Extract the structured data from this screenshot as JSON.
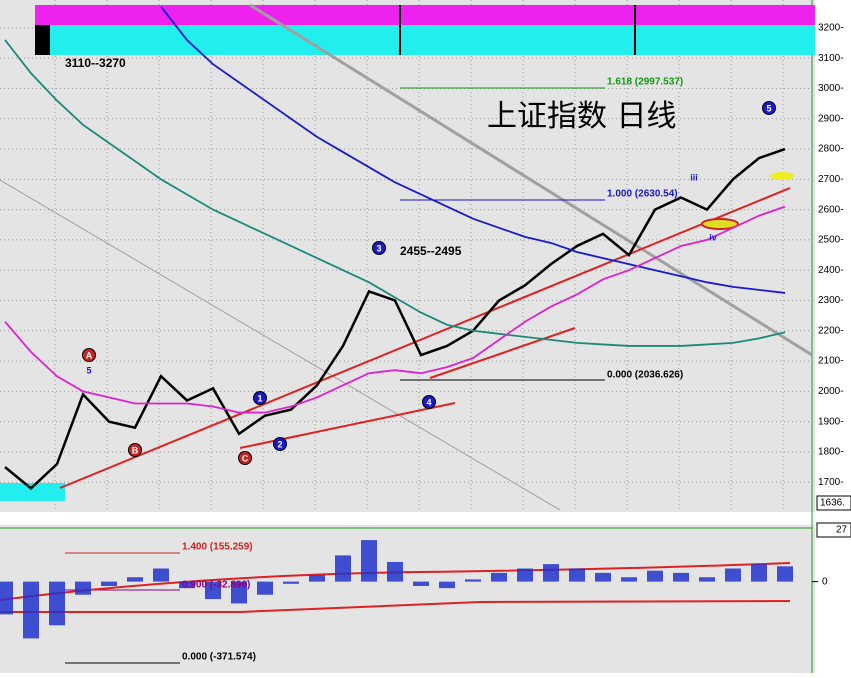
{
  "chart_data": {
    "type": "line",
    "title": "上证指数  日线",
    "ylim": [
      1615,
      3292
    ],
    "yticks": [
      {
        "value": 1700,
        "label": "1700-"
      },
      {
        "value": 1800,
        "label": "1800-"
      },
      {
        "value": 1900,
        "label": "1900-"
      },
      {
        "value": 2000,
        "label": "2000-"
      },
      {
        "value": 2100,
        "label": "2100-"
      },
      {
        "value": 2200,
        "label": "2200-"
      },
      {
        "value": 2300,
        "label": "2300-"
      },
      {
        "value": 2400,
        "label": "2400-"
      },
      {
        "value": 2500,
        "label": "2500-"
      },
      {
        "value": 2600,
        "label": "2600-"
      },
      {
        "value": 2700,
        "label": "2700-"
      },
      {
        "value": 2800,
        "label": "2800-"
      },
      {
        "value": 2900,
        "label": "2900-"
      },
      {
        "value": 3000,
        "label": "3000-"
      },
      {
        "value": 3100,
        "label": "3100-"
      },
      {
        "value": 3200,
        "label": "3200-"
      }
    ],
    "grid": true,
    "series": [
      {
        "name": "close",
        "color": "#000000",
        "values": [
          1750,
          1680,
          1760,
          1990,
          1900,
          1880,
          2050,
          1970,
          2010,
          1860,
          1920,
          1940,
          2020,
          2150,
          2330,
          2300,
          2120,
          2150,
          2200,
          2300,
          2350,
          2420,
          2480,
          2520,
          2450,
          2600,
          2640,
          2600,
          2700,
          2770,
          2800
        ]
      },
      {
        "name": "ma-blue",
        "color": "#1a1acc",
        "values": [
          null,
          null,
          null,
          null,
          null,
          null,
          3270,
          3160,
          3080,
          3020,
          2960,
          2900,
          2840,
          2790,
          2740,
          2690,
          2650,
          2610,
          2570,
          2540,
          2510,
          2490,
          2460,
          2440,
          2420,
          2400,
          2380,
          2360,
          2345,
          2335,
          2325
        ]
      },
      {
        "name": "ma-teal",
        "color": "#1a8a7a",
        "values": [
          3160,
          3050,
          2960,
          2880,
          2820,
          2760,
          2700,
          2650,
          2600,
          2560,
          2520,
          2480,
          2440,
          2400,
          2360,
          2310,
          2260,
          2220,
          2200,
          2190,
          2180,
          2170,
          2160,
          2155,
          2150,
          2150,
          2150,
          2155,
          2160,
          2175,
          2195
        ]
      },
      {
        "name": "ma-magenta",
        "color": "#dd22cc",
        "values": [
          2230,
          2130,
          2050,
          2000,
          1980,
          1960,
          1960,
          1960,
          1950,
          1930,
          1930,
          1950,
          1980,
          2020,
          2060,
          2070,
          2060,
          2080,
          2110,
          2170,
          2230,
          2280,
          2320,
          2370,
          2400,
          2440,
          2480,
          2500,
          2540,
          2580,
          2610
        ]
      }
    ],
    "indicator": {
      "ylim": [
        -400,
        250
      ],
      "yticks": [
        0
      ],
      "color": "#2233cc",
      "values": [
        -150,
        -260,
        -200,
        -60,
        -20,
        20,
        60,
        -30,
        -80,
        -100,
        -60,
        -10,
        30,
        120,
        190,
        90,
        -20,
        -30,
        10,
        40,
        60,
        80,
        60,
        40,
        20,
        50,
        40,
        20,
        60,
        80,
        70
      ]
    },
    "price_box": "1636.",
    "indicator_box": "27",
    "texts": [
      "3110--3270",
      "2455--2495",
      "1.618 (2997.537)",
      "1.000 (2630.54)",
      "0.000 (2036.626)",
      "1.400 (155.259)",
      "0.900 (-32.896)",
      "0.000 (-371.574)"
    ],
    "wave_labels": [
      "1",
      "2",
      "3",
      "4",
      "5",
      "A",
      "B",
      "C",
      "iii",
      "iv",
      "5"
    ]
  }
}
